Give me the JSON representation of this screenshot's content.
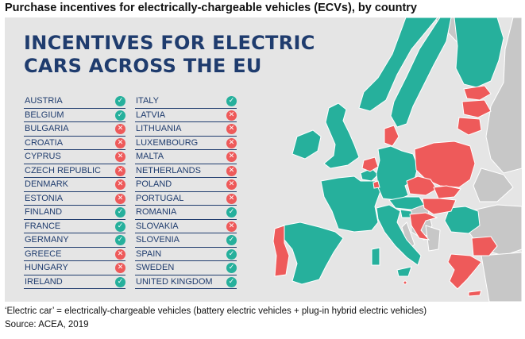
{
  "page_title": "Purchase incentives for electrically-chargeable vehicles (ECVs), by country",
  "infographic": {
    "headline_line1": "INCENTIVES FOR ELECTRIC",
    "headline_line2": "CARS ACROSS THE EU"
  },
  "colors": {
    "incentive_yes": "#26b09c",
    "incentive_no": "#ee5a5a",
    "non_eu": "#c7c7c7",
    "panel_background": "#e5e5e5",
    "text_navy": "#1f3c6e"
  },
  "legend_icons": {
    "yes": "check-icon",
    "no": "cross-icon"
  },
  "countries_left": [
    {
      "name": "AUSTRIA",
      "incentive": true
    },
    {
      "name": "BELGIUM",
      "incentive": true
    },
    {
      "name": "BULGARIA",
      "incentive": false
    },
    {
      "name": "CROATIA",
      "incentive": false
    },
    {
      "name": "CYPRUS",
      "incentive": false
    },
    {
      "name": "CZECH REPUBLIC",
      "incentive": false
    },
    {
      "name": "DENMARK",
      "incentive": false
    },
    {
      "name": "ESTONIA",
      "incentive": false
    },
    {
      "name": "FINLAND",
      "incentive": true
    },
    {
      "name": "FRANCE",
      "incentive": true
    },
    {
      "name": "GERMANY",
      "incentive": true
    },
    {
      "name": "GREECE",
      "incentive": false
    },
    {
      "name": "HUNGARY",
      "incentive": false
    },
    {
      "name": "IRELAND",
      "incentive": true
    }
  ],
  "countries_right": [
    {
      "name": "ITALY",
      "incentive": true
    },
    {
      "name": "LATVIA",
      "incentive": false
    },
    {
      "name": "LITHUANIA",
      "incentive": false
    },
    {
      "name": "LUXEMBOURG",
      "incentive": false
    },
    {
      "name": "MALTA",
      "incentive": false
    },
    {
      "name": "NETHERLANDS",
      "incentive": false
    },
    {
      "name": "POLAND",
      "incentive": false
    },
    {
      "name": "PORTUGAL",
      "incentive": false
    },
    {
      "name": "ROMANIA",
      "incentive": true
    },
    {
      "name": "SLOVAKIA",
      "incentive": false
    },
    {
      "name": "SLOVENIA",
      "incentive": true
    },
    {
      "name": "SPAIN",
      "incentive": true
    },
    {
      "name": "SWEDEN",
      "incentive": true
    },
    {
      "name": "UNITED KINGDOM",
      "incentive": true
    }
  ],
  "footnote": "‘Electric car’ = electrically-chargeable vehicles (battery electric vehicles + plug-in hybrid electric vehicles)",
  "source": "Source: ACEA, 2019"
}
